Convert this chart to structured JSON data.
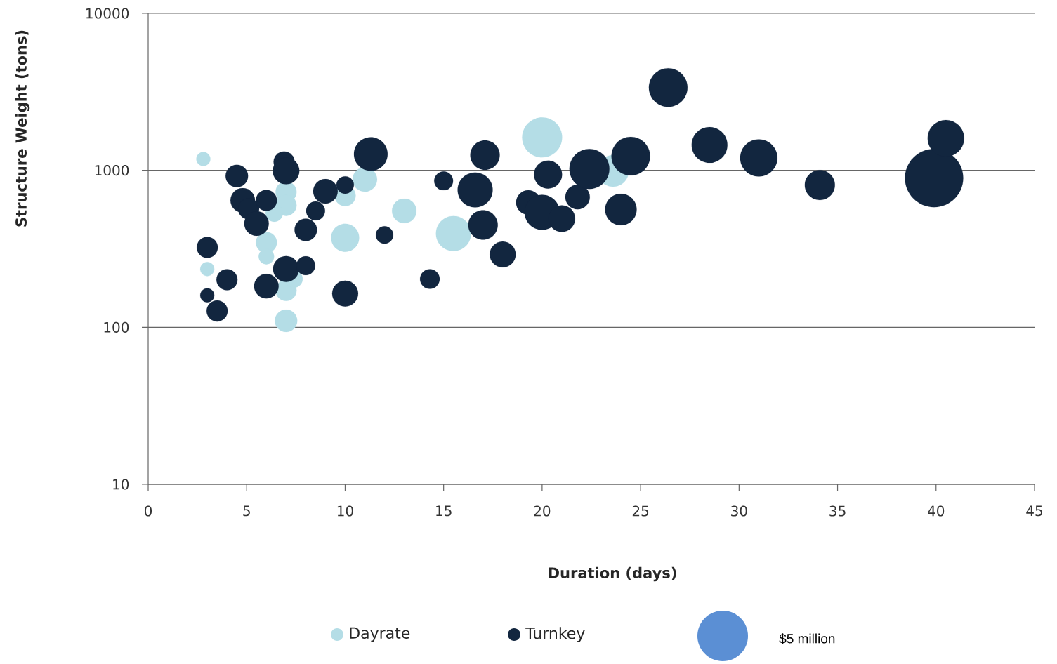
{
  "chart_data": {
    "type": "bubble",
    "xlabel": "Duration (days)",
    "ylabel": "Structure Weight (tons)",
    "xlim": [
      0,
      45
    ],
    "xticks": [
      0,
      5,
      10,
      15,
      20,
      25,
      30,
      35,
      40,
      45
    ],
    "ylim": [
      10,
      10000
    ],
    "yticks": [
      10,
      100,
      1000,
      10000
    ],
    "log": "y",
    "grid": "y",
    "legend": "bottom",
    "size_legend": [
      {
        "value": 5,
        "label": "$5 million"
      }
    ],
    "series": [
      {
        "name": "Dayrate",
        "color": "#b4dde6",
        "x": [
          2.8,
          3.0,
          7.0,
          7.0,
          6.4,
          6.0,
          6.0,
          7.0,
          7.4,
          7.0,
          10.0,
          10.0,
          11.0,
          13.0,
          15.5,
          20.0,
          23.6
        ],
        "values": [
          1180,
          235,
          728,
          598,
          535,
          347,
          282,
          172,
          203,
          110,
          372,
          690,
          875,
          551,
          396,
          1620,
          991
        ],
        "sizes": [
          0.39,
          0.39,
          0.87,
          0.87,
          0.6,
          0.87,
          0.47,
          0.87,
          0.6,
          0.99,
          1.54,
          0.87,
          1.18,
          1.18,
          2.41,
          3.13,
          1.95
        ]
      },
      {
        "name": "Turnkey",
        "color": "#12263f",
        "x": [
          6.9,
          7.0,
          4.5,
          4.8,
          5.1,
          6.0,
          5.5,
          9.0,
          10.0,
          8.5,
          8.0,
          12.0,
          11.3,
          3.0,
          4.0,
          3.0,
          3.5,
          6.0,
          7.0,
          8.0,
          10.0,
          15.0,
          16.6,
          17.1,
          17.0,
          18.0,
          14.3,
          20.3,
          19.3,
          20.0,
          21.0,
          21.8,
          22.4,
          24.5,
          24.0,
          26.4,
          28.5,
          31.0,
          34.1,
          39.9,
          40.5
        ],
        "values": [
          1130,
          991,
          920,
          643,
          568,
          643,
          458,
          735,
          806,
          551,
          418,
          388,
          1270,
          323,
          201,
          160,
          127,
          183,
          235,
          247,
          164,
          857,
          750,
          1250,
          449,
          291,
          203,
          940,
          624,
          540,
          492,
          676,
          1020,
          1230,
          563,
          3370,
          1450,
          1200,
          806,
          893,
          1600
        ],
        "sizes": [
          0.87,
          1.39,
          0.99,
          1.18,
          0.87,
          0.87,
          1.18,
          1.18,
          0.6,
          0.7,
          0.99,
          0.6,
          2.22,
          0.87,
          0.87,
          0.39,
          0.87,
          1.18,
          1.32,
          0.7,
          1.32,
          0.7,
          2.41,
          1.7,
          1.7,
          1.32,
          0.76,
          1.54,
          1.18,
          2.41,
          1.39,
          1.18,
          3.13,
          2.92,
          1.95,
          2.92,
          2.51,
          2.71,
          1.78,
          6.64,
          2.61
        ]
      }
    ]
  }
}
